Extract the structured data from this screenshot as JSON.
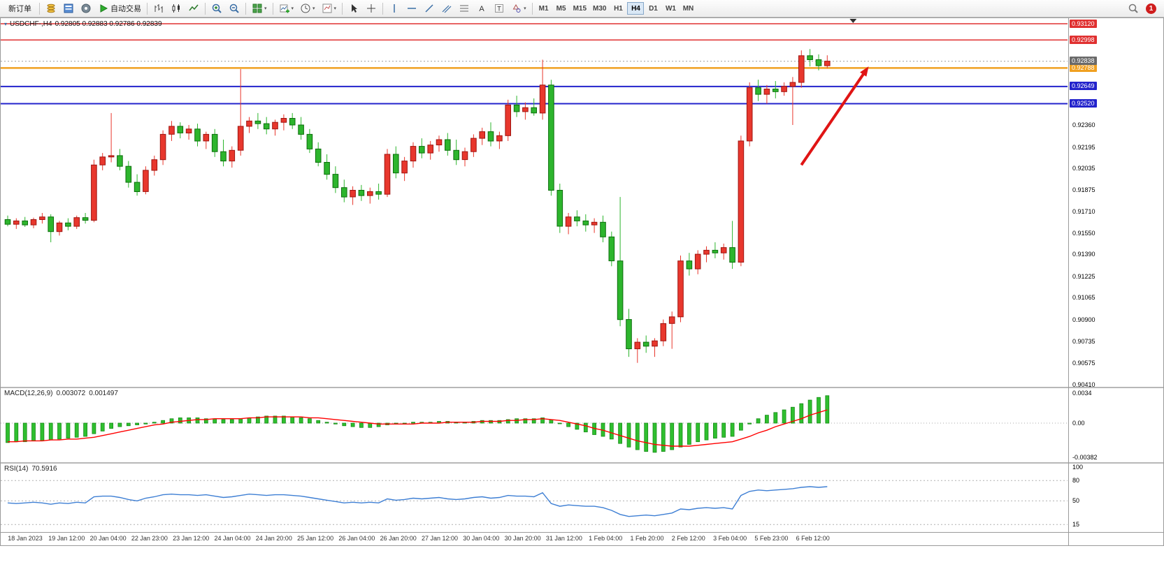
{
  "toolbar": {
    "new_order_label": "新订单",
    "auto_trading_label": "自动交易",
    "timeframes": [
      "M1",
      "M5",
      "M15",
      "M30",
      "H1",
      "H4",
      "D1",
      "W1",
      "MN"
    ],
    "active_timeframe": "H4",
    "notification_count": "1",
    "icons": [
      "coins-icon",
      "market-panel-icon",
      "info-icon",
      "play-icon",
      "ohlc-bars-icon",
      "candlesticks-icon",
      "line-chart-icon",
      "zoom-in-icon",
      "zoom-out-icon",
      "tile-windows-icon",
      "new-chart-icon",
      "clock-icon",
      "chart-template-icon",
      "cursor-icon",
      "crosshair-icon",
      "vertical-line-icon",
      "horizontal-line-icon",
      "trendline-icon",
      "channel-icon",
      "fibonacci-icon",
      "text-icon",
      "label-icon",
      "shapes-icon",
      "search-icon",
      "chevron-down-icon"
    ]
  },
  "chart": {
    "symbol_period": "USDCHF-,H4",
    "ohlc_text": "0.92805 0.92883 0.92786 0.92839"
  },
  "chart_data": {
    "type": "candlestick",
    "symbol": "USDCHF",
    "period": "H4",
    "colors": {
      "up": "#e8372d",
      "up_border": "#9e1410",
      "down": "#2db52d",
      "down_border": "#0c6e0c",
      "macd_hist": "#2fbf2f",
      "macd_hist_border": "#138813",
      "macd_signal": "#ff0000",
      "rsi_line": "#3e7fd4",
      "arrow": "#e01414",
      "bid_line": "#9a9a9a",
      "bid_badge": "#6a6a6a"
    },
    "layout": {
      "left_pad": 10,
      "spacing": 12.34,
      "main_height": 528,
      "macd_height": 106,
      "rsi_height": 98,
      "label_start": 35,
      "label_step": 59.3
    },
    "price_axis": {
      "min": 0.90395,
      "max": 0.93162,
      "ticks": [
        0.9236,
        0.92195,
        0.92035,
        0.91875,
        0.9171,
        0.9155,
        0.9139,
        0.91225,
        0.91065,
        0.909,
        0.90735,
        0.90575,
        0.9041
      ],
      "current_price": 0.92838,
      "current_price_label": "0.92838"
    },
    "hlines": [
      {
        "value": 0.9312,
        "label": "0.93120",
        "color": "#e03030",
        "width": 1.5
      },
      {
        "value": 0.92998,
        "label": "0.92998",
        "color": "#e03030",
        "width": 1.5
      },
      {
        "value": 0.92788,
        "label": "0.92788",
        "color": "#f0a020",
        "width": 2.5
      },
      {
        "value": 0.92649,
        "label": "0.92649",
        "color": "#2323cc",
        "width": 2
      },
      {
        "value": 0.9252,
        "label": "0.92520",
        "color": "#2323cc",
        "width": 2
      }
    ],
    "candles": [
      [
        0.9165,
        0.9168,
        0.916,
        0.91615
      ],
      [
        0.91615,
        0.9166,
        0.9158,
        0.9164
      ],
      [
        0.9164,
        0.9167,
        0.91595,
        0.9161
      ],
      [
        0.9161,
        0.91665,
        0.91585,
        0.9165
      ],
      [
        0.9165,
        0.917,
        0.9162,
        0.9167
      ],
      [
        0.9167,
        0.9169,
        0.9148,
        0.9156
      ],
      [
        0.9156,
        0.9164,
        0.9153,
        0.91625
      ],
      [
        0.91625,
        0.9166,
        0.9157,
        0.916
      ],
      [
        0.916,
        0.9168,
        0.9158,
        0.91665
      ],
      [
        0.91665,
        0.917,
        0.9162,
        0.91645
      ],
      [
        0.91645,
        0.921,
        0.9163,
        0.9206
      ],
      [
        0.9206,
        0.9215,
        0.9202,
        0.9212
      ],
      [
        0.9212,
        0.9245,
        0.9208,
        0.9213
      ],
      [
        0.9213,
        0.9218,
        0.9202,
        0.9205
      ],
      [
        0.9205,
        0.9209,
        0.9189,
        0.9193
      ],
      [
        0.9193,
        0.9199,
        0.9183,
        0.9186
      ],
      [
        0.9186,
        0.9205,
        0.9184,
        0.9202
      ],
      [
        0.9202,
        0.9213,
        0.9198,
        0.921
      ],
      [
        0.921,
        0.9232,
        0.9206,
        0.9229
      ],
      [
        0.9229,
        0.9239,
        0.9224,
        0.9235
      ],
      [
        0.9235,
        0.9238,
        0.9226,
        0.923
      ],
      [
        0.923,
        0.9236,
        0.9225,
        0.9233
      ],
      [
        0.9233,
        0.9237,
        0.922,
        0.9224
      ],
      [
        0.9224,
        0.9231,
        0.9218,
        0.9229
      ],
      [
        0.9229,
        0.9233,
        0.9212,
        0.9216
      ],
      [
        0.9216,
        0.9225,
        0.9205,
        0.9209
      ],
      [
        0.9209,
        0.922,
        0.9204,
        0.9217
      ],
      [
        0.9217,
        0.9278,
        0.9213,
        0.9235
      ],
      [
        0.9235,
        0.9242,
        0.923,
        0.9239
      ],
      [
        0.9239,
        0.9245,
        0.9233,
        0.9237
      ],
      [
        0.9237,
        0.9242,
        0.9229,
        0.9233
      ],
      [
        0.9233,
        0.924,
        0.9228,
        0.9238
      ],
      [
        0.9238,
        0.9244,
        0.9232,
        0.9241
      ],
      [
        0.9241,
        0.9245,
        0.9233,
        0.9236
      ],
      [
        0.9236,
        0.9242,
        0.9225,
        0.9229
      ],
      [
        0.9229,
        0.9233,
        0.9215,
        0.9218
      ],
      [
        0.9218,
        0.9223,
        0.9205,
        0.9208
      ],
      [
        0.9208,
        0.9214,
        0.9195,
        0.9199
      ],
      [
        0.9199,
        0.9205,
        0.9185,
        0.9189
      ],
      [
        0.9189,
        0.9195,
        0.9178,
        0.9182
      ],
      [
        0.9182,
        0.919,
        0.9176,
        0.9187
      ],
      [
        0.9187,
        0.9191,
        0.9179,
        0.9183
      ],
      [
        0.9183,
        0.9189,
        0.9177,
        0.9186
      ],
      [
        0.9186,
        0.9192,
        0.918,
        0.9184
      ],
      [
        0.9184,
        0.9218,
        0.9182,
        0.9214
      ],
      [
        0.9214,
        0.922,
        0.9196,
        0.92
      ],
      [
        0.92,
        0.9212,
        0.9194,
        0.9209
      ],
      [
        0.9209,
        0.9223,
        0.9204,
        0.922
      ],
      [
        0.922,
        0.9226,
        0.9211,
        0.9215
      ],
      [
        0.9215,
        0.9224,
        0.921,
        0.9221
      ],
      [
        0.9221,
        0.9228,
        0.9216,
        0.9225
      ],
      [
        0.9225,
        0.923,
        0.9213,
        0.9217
      ],
      [
        0.9217,
        0.9225,
        0.9206,
        0.921
      ],
      [
        0.921,
        0.9219,
        0.9205,
        0.9216
      ],
      [
        0.9216,
        0.9229,
        0.9212,
        0.9226
      ],
      [
        0.9226,
        0.9234,
        0.9221,
        0.9231
      ],
      [
        0.9231,
        0.9238,
        0.922,
        0.9224
      ],
      [
        0.9224,
        0.9231,
        0.9218,
        0.9228
      ],
      [
        0.9228,
        0.9255,
        0.9224,
        0.9251
      ],
      [
        0.9251,
        0.9258,
        0.9242,
        0.9246
      ],
      [
        0.9246,
        0.9253,
        0.924,
        0.9249
      ],
      [
        0.9249,
        0.9256,
        0.9243,
        0.9245
      ],
      [
        0.9245,
        0.9285,
        0.924,
        0.9266
      ],
      [
        0.9266,
        0.927,
        0.9183,
        0.9187
      ],
      [
        0.9187,
        0.9192,
        0.9155,
        0.916
      ],
      [
        0.916,
        0.917,
        0.9154,
        0.9167
      ],
      [
        0.9167,
        0.9172,
        0.916,
        0.9164
      ],
      [
        0.9164,
        0.9169,
        0.9156,
        0.9161
      ],
      [
        0.9161,
        0.9166,
        0.9155,
        0.9163
      ],
      [
        0.9163,
        0.9168,
        0.9148,
        0.9152
      ],
      [
        0.9152,
        0.9156,
        0.913,
        0.9134
      ],
      [
        0.9134,
        0.9182,
        0.9085,
        0.909
      ],
      [
        0.909,
        0.9098,
        0.9062,
        0.9068
      ],
      [
        0.9068,
        0.9076,
        0.90575,
        0.9073
      ],
      [
        0.9073,
        0.9078,
        0.9065,
        0.907
      ],
      [
        0.907,
        0.9076,
        0.9062,
        0.9074
      ],
      [
        0.9074,
        0.909,
        0.907,
        0.9087
      ],
      [
        0.9087,
        0.9096,
        0.9068,
        0.9092
      ],
      [
        0.9092,
        0.9138,
        0.9088,
        0.9134
      ],
      [
        0.9134,
        0.914,
        0.9123,
        0.9128
      ],
      [
        0.9128,
        0.9142,
        0.9124,
        0.9139
      ],
      [
        0.9139,
        0.9145,
        0.9133,
        0.9142
      ],
      [
        0.9142,
        0.9148,
        0.9136,
        0.914
      ],
      [
        0.914,
        0.9147,
        0.9135,
        0.9144
      ],
      [
        0.9144,
        0.9164,
        0.9128,
        0.9133
      ],
      [
        0.9133,
        0.9228,
        0.913,
        0.9224
      ],
      [
        0.9224,
        0.9268,
        0.922,
        0.9264
      ],
      [
        0.9264,
        0.927,
        0.9254,
        0.9259
      ],
      [
        0.9259,
        0.9266,
        0.9252,
        0.9263
      ],
      [
        0.9263,
        0.9269,
        0.9256,
        0.9261
      ],
      [
        0.9261,
        0.9268,
        0.9258,
        0.9265
      ],
      [
        0.9265,
        0.9272,
        0.9236,
        0.9268
      ],
      [
        0.9268,
        0.9292,
        0.9264,
        0.9288
      ],
      [
        0.9288,
        0.9293,
        0.928,
        0.9285
      ],
      [
        0.9285,
        0.9289,
        0.9277,
        0.92805
      ],
      [
        0.92805,
        0.92883,
        0.92786,
        0.92839
      ]
    ],
    "time_labels": [
      "18 Jan 2023",
      "19 Jan 12:00",
      "20 Jan 04:00",
      "22 Jan 23:00",
      "23 Jan 12:00",
      "24 Jan 04:00",
      "24 Jan 20:00",
      "25 Jan 12:00",
      "26 Jan 04:00",
      "26 Jan 20:00",
      "27 Jan 12:00",
      "30 Jan 04:00",
      "30 Jan 20:00",
      "31 Jan 12:00",
      "1 Feb 04:00",
      "1 Feb 20:00",
      "2 Feb 12:00",
      "3 Feb 04:00",
      "5 Feb 23:00",
      "6 Feb 12:00"
    ],
    "macd": {
      "label": "MACD(12,26,9)",
      "main_value": "0.003072",
      "signal_value": "0.001497",
      "range_min": -0.00441,
      "range_max": 0.00394,
      "ticks": [
        {
          "v": 0.0034,
          "label": "0.0034"
        },
        {
          "v": 0,
          "label": "0.00"
        },
        {
          "v": -0.00382,
          "label": "-0.00382"
        }
      ],
      "hist": [
        -0.0022,
        -0.0021,
        -0.0021,
        -0.002,
        -0.002,
        -0.0019,
        -0.0018,
        -0.0017,
        -0.0016,
        -0.0015,
        -0.0012,
        -0.0009,
        -0.0006,
        -0.0004,
        -0.0003,
        -0.0002,
        -0.0001,
        0.0001,
        0.0003,
        0.0005,
        0.0006,
        0.0006,
        0.0006,
        0.0005,
        0.0005,
        0.0004,
        0.0004,
        0.0005,
        0.0006,
        0.0007,
        0.0008,
        0.0008,
        0.0008,
        0.0007,
        0.0006,
        0.0005,
        0.0003,
        0.0001,
        -0.0001,
        -0.0003,
        -0.0004,
        -0.0005,
        -0.0005,
        -0.0004,
        -0.0002,
        -0.0001,
        0.0,
        0.0001,
        0.0001,
        0.0001,
        0.0002,
        0.0002,
        0.0001,
        0.0001,
        0.0002,
        0.0003,
        0.0003,
        0.0003,
        0.0004,
        0.0005,
        0.0005,
        0.0005,
        0.0006,
        0.0004,
        0.0,
        -0.0004,
        -0.0007,
        -0.001,
        -0.0013,
        -0.0015,
        -0.0018,
        -0.0023,
        -0.0027,
        -0.003,
        -0.0032,
        -0.0033,
        -0.0032,
        -0.003,
        -0.0027,
        -0.0024,
        -0.0021,
        -0.0019,
        -0.0017,
        -0.0016,
        -0.0015,
        -0.0008,
        -0.0001,
        0.0005,
        0.0009,
        0.0012,
        0.0015,
        0.0018,
        0.0022,
        0.0026,
        0.0029,
        0.0031
      ],
      "signal": [
        -0.0021,
        -0.0021,
        -0.002,
        -0.002,
        -0.002,
        -0.0019,
        -0.0019,
        -0.0018,
        -0.0018,
        -0.0017,
        -0.0016,
        -0.0014,
        -0.0012,
        -0.001,
        -0.0008,
        -0.0006,
        -0.0004,
        -0.0002,
        -0.0001,
        0.0001,
        0.0002,
        0.0003,
        0.0004,
        0.0004,
        0.0005,
        0.0005,
        0.0005,
        0.0005,
        0.0006,
        0.0006,
        0.0007,
        0.0007,
        0.0007,
        0.0007,
        0.0007,
        0.0006,
        0.0006,
        0.0005,
        0.0004,
        0.0003,
        0.0002,
        0.0001,
        0.0,
        -0.0001,
        -0.0001,
        -0.0001,
        -0.0001,
        -0.0001,
        0.0,
        0.0,
        0.0,
        0.0001,
        0.0001,
        0.0001,
        0.0001,
        0.0002,
        0.0002,
        0.0002,
        0.0003,
        0.0003,
        0.0004,
        0.0004,
        0.0005,
        0.0004,
        0.0003,
        0.0001,
        -0.0001,
        -0.0003,
        -0.0006,
        -0.0008,
        -0.0011,
        -0.0014,
        -0.0017,
        -0.002,
        -0.0022,
        -0.0024,
        -0.0025,
        -0.0026,
        -0.0026,
        -0.0026,
        -0.0025,
        -0.0024,
        -0.0023,
        -0.0022,
        -0.0021,
        -0.0018,
        -0.0015,
        -0.0011,
        -0.0008,
        -0.0004,
        -0.0001,
        0.0002,
        0.0005,
        0.0009,
        0.0012,
        0.0015
      ]
    },
    "rsi": {
      "label": "RSI(14)",
      "value": "70.5916",
      "range_min": 4,
      "range_max": 105,
      "levels": [
        80,
        50,
        15
      ],
      "ticks": [
        {
          "v": 100,
          "label": "100"
        },
        {
          "v": 80,
          "label": "80"
        },
        {
          "v": 50,
          "label": "50"
        },
        {
          "v": 15,
          "label": "15"
        }
      ],
      "series": [
        47,
        46,
        47,
        48,
        47,
        45,
        47,
        46,
        48,
        47,
        56,
        57,
        57,
        55,
        52,
        50,
        54,
        56,
        59,
        60,
        59,
        59,
        58,
        59,
        57,
        55,
        56,
        58,
        60,
        59,
        58,
        59,
        59,
        58,
        57,
        55,
        53,
        51,
        49,
        47,
        48,
        47,
        48,
        47,
        53,
        51,
        52,
        54,
        53,
        54,
        55,
        53,
        52,
        53,
        55,
        56,
        54,
        55,
        58,
        57,
        57,
        56,
        62,
        46,
        42,
        44,
        43,
        42,
        42,
        40,
        36,
        30,
        27,
        28,
        29,
        28,
        30,
        32,
        38,
        37,
        39,
        40,
        39,
        40,
        38,
        58,
        64,
        66,
        65,
        66,
        67,
        68,
        70,
        71,
        70,
        71
      ]
    },
    "arrow": {
      "from_index": 92,
      "from_price": 0.9206,
      "to_index": 99.8,
      "to_price": 0.928
    },
    "shift_marker_index": 98
  }
}
